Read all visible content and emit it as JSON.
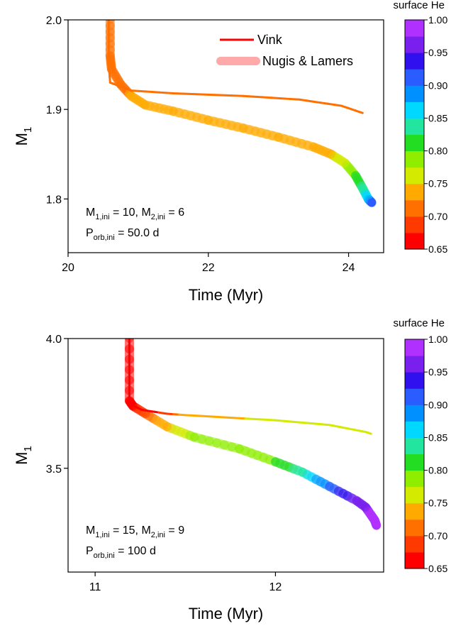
{
  "colorbar": {
    "label": "surface He",
    "colors": [
      "#ff0000",
      "#ff3a00",
      "#ff7000",
      "#ffaa00",
      "#d4ea00",
      "#8fee00",
      "#22dd22",
      "#22e6a0",
      "#00d8ff",
      "#0090ff",
      "#2a5cff",
      "#3010ee",
      "#7a20ee",
      "#b030ff"
    ],
    "tick_labels": [
      "0.65",
      "0.70",
      "0.75",
      "0.80",
      "0.85",
      "0.90",
      "0.95",
      "1.00"
    ],
    "range": [
      0.65,
      1.0
    ]
  },
  "chart_data": [
    {
      "type": "line",
      "xlabel": "Time (Myr)",
      "ylabel": "M",
      "ylabel_sub": "1",
      "xlim": [
        20.0,
        24.5
      ],
      "ylim": [
        1.74,
        2.0
      ],
      "xticks": [
        "20",
        "22",
        "24"
      ],
      "yticks": [
        "1.8",
        "1.9",
        "2.0"
      ],
      "legend": {
        "position": "top-right",
        "entries": [
          {
            "name": "Vink",
            "color": "#ff0000"
          },
          {
            "name": "Nugis & Lamers",
            "color": "#ffaaaa"
          }
        ]
      },
      "annotation": [
        {
          "main": "M",
          "sub": "1,ini",
          "rest": " = 10, M",
          "sub2": "2,ini",
          "rest2": " = 6"
        },
        {
          "main": "P",
          "sub": "orb,ini",
          "rest": " = 50.0 d"
        }
      ],
      "series": [
        {
          "name": "Vink",
          "points": [
            [
              20.58,
              2.0
            ],
            [
              20.58,
              1.95
            ],
            [
              20.6,
              1.93
            ],
            [
              20.9,
              1.921
            ],
            [
              21.5,
              1.918
            ],
            [
              22.5,
              1.915
            ],
            [
              23.3,
              1.911
            ],
            [
              23.9,
              1.904
            ],
            [
              24.2,
              1.896
            ]
          ],
          "he": [
            0.72,
            0.72,
            0.72,
            0.72,
            0.72,
            0.72,
            0.72,
            0.72,
            0.72
          ]
        },
        {
          "name": "Nugis & Lamers",
          "points": [
            [
              20.6,
              2.0
            ],
            [
              20.6,
              1.96
            ],
            [
              20.62,
              1.945
            ],
            [
              20.75,
              1.928
            ],
            [
              20.9,
              1.915
            ],
            [
              21.1,
              1.905
            ],
            [
              21.5,
              1.898
            ],
            [
              22.0,
              1.888
            ],
            [
              22.5,
              1.879
            ],
            [
              23.0,
              1.869
            ],
            [
              23.5,
              1.858
            ],
            [
              23.75,
              1.85
            ],
            [
              23.95,
              1.84
            ],
            [
              24.1,
              1.826
            ],
            [
              24.2,
              1.812
            ],
            [
              24.28,
              1.8
            ],
            [
              24.33,
              1.796
            ]
          ],
          "he": [
            0.71,
            0.71,
            0.71,
            0.71,
            0.73,
            0.745,
            0.745,
            0.745,
            0.745,
            0.745,
            0.745,
            0.748,
            0.77,
            0.8,
            0.83,
            0.87,
            0.91
          ]
        }
      ]
    },
    {
      "type": "line",
      "xlabel": "Time (Myr)",
      "ylabel": "M",
      "ylabel_sub": "1",
      "xlim": [
        10.85,
        12.6
      ],
      "ylim": [
        3.1,
        4.0
      ],
      "xticks": [
        "11",
        "12"
      ],
      "yticks": [
        "3.5",
        "4.0"
      ],
      "annotation": [
        {
          "main": "M",
          "sub": "1,ini",
          "rest": " = 15, M",
          "sub2": "2,ini",
          "rest2": " = 9"
        },
        {
          "main": "P",
          "sub": "orb,ini",
          "rest": " = 100 d"
        }
      ],
      "series": [
        {
          "name": "Vink",
          "points": [
            [
              11.19,
              4.0
            ],
            [
              11.19,
              3.76
            ],
            [
              11.2,
              3.745
            ],
            [
              11.26,
              3.725
            ],
            [
              11.4,
              3.71
            ],
            [
              11.5,
              3.705
            ],
            [
              12.0,
              3.685
            ],
            [
              12.3,
              3.667
            ],
            [
              12.5,
              3.64
            ],
            [
              12.53,
              3.633
            ]
          ],
          "he": [
            0.65,
            0.65,
            0.65,
            0.66,
            0.68,
            0.745,
            0.752,
            0.752,
            0.752,
            0.752
          ]
        },
        {
          "name": "Nugis & Lamers",
          "points": [
            [
              11.19,
              4.0
            ],
            [
              11.19,
              3.76
            ],
            [
              11.21,
              3.74
            ],
            [
              11.28,
              3.71
            ],
            [
              11.4,
              3.66
            ],
            [
              11.55,
              3.62
            ],
            [
              11.8,
              3.575
            ],
            [
              12.0,
              3.525
            ],
            [
              12.15,
              3.485
            ],
            [
              12.3,
              3.43
            ],
            [
              12.45,
              3.375
            ],
            [
              12.5,
              3.35
            ],
            [
              12.53,
              3.32
            ],
            [
              12.55,
              3.3
            ],
            [
              12.56,
              3.28
            ]
          ],
          "he": [
            0.66,
            0.66,
            0.66,
            0.7,
            0.745,
            0.78,
            0.79,
            0.8,
            0.84,
            0.9,
            0.96,
            0.97,
            0.98,
            0.99,
            1.0
          ]
        }
      ]
    }
  ]
}
